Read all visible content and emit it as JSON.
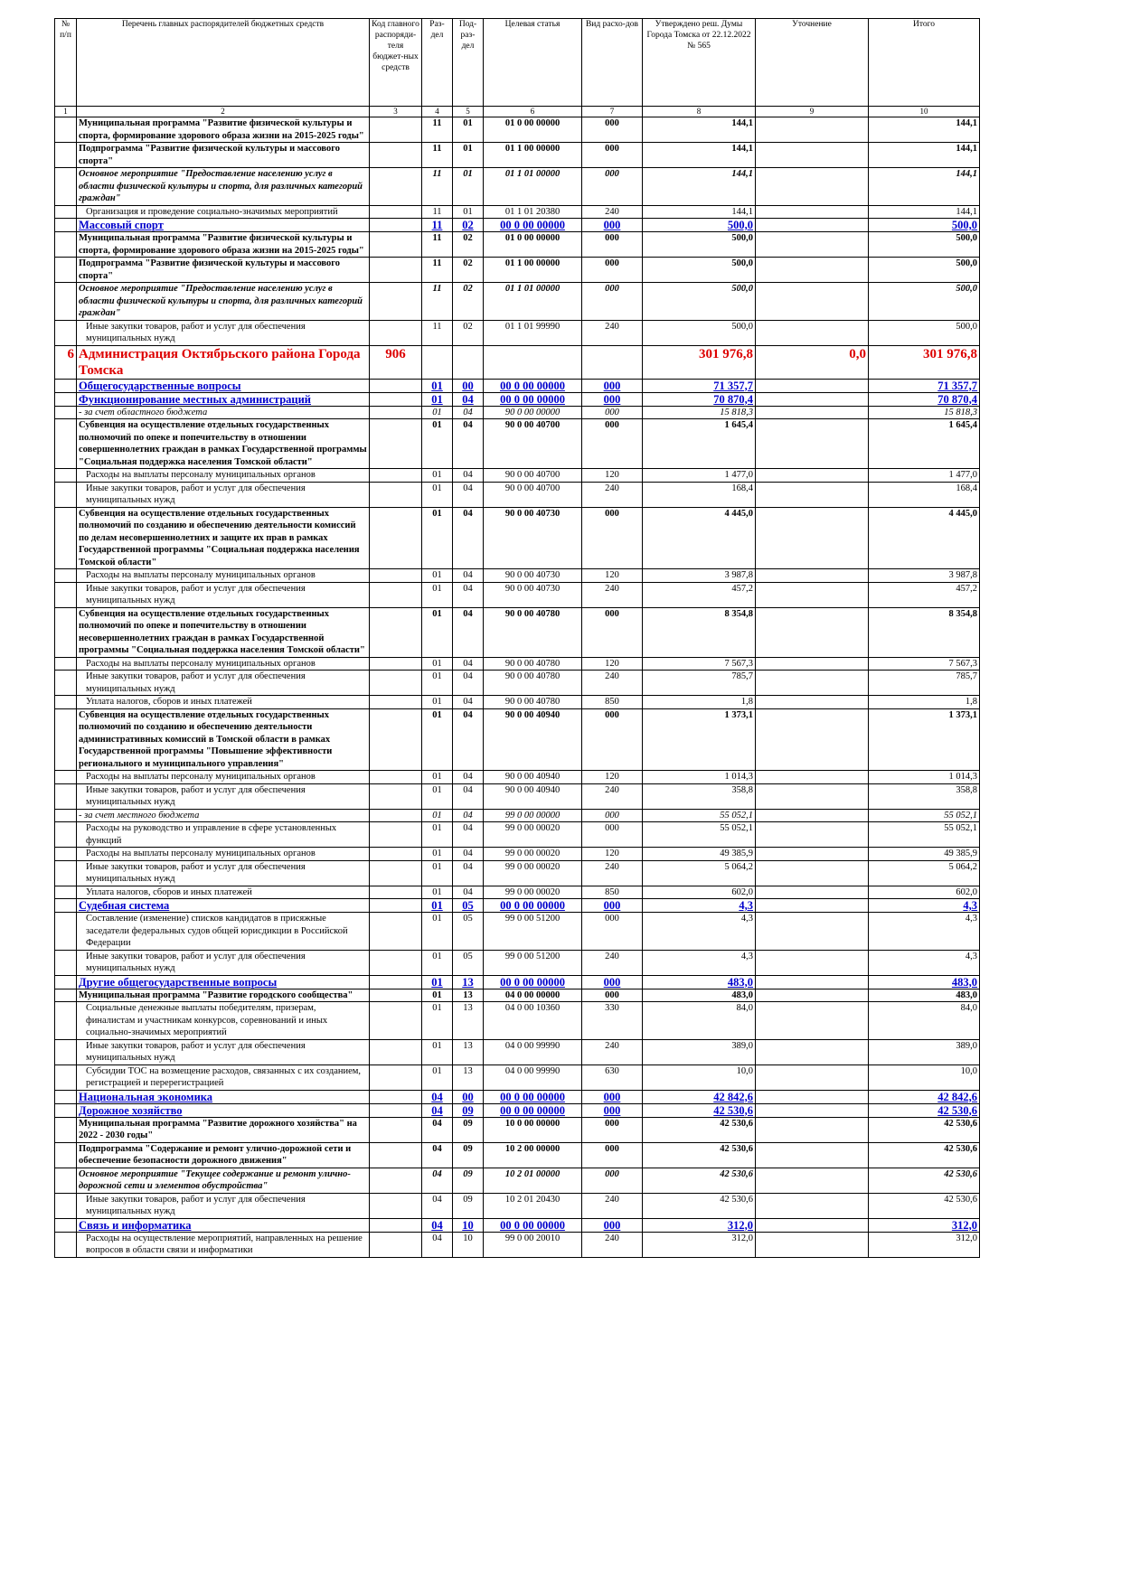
{
  "table": {
    "header": [
      "№ п/п",
      "Перечень главных распорядителей бюджетных средств",
      "Код главного распоряди-теля бюджет-ных средств",
      "Раз-дел",
      "Под-раз-дел",
      "Целевая статья",
      "Вид расхо-дов",
      "Утверждено реш. Думы Города Томска от 22.12.2022 № 565",
      "Уточнение",
      "Итого"
    ],
    "column_numbers": [
      "1",
      "2",
      "3",
      "4",
      "5",
      "6",
      "7",
      "8",
      "9",
      "10"
    ],
    "rows": [
      {
        "style": "b",
        "cells": [
          null,
          "Муниципальная программа \"Развитие физической культуры и спорта, формирование здорового образа жизни на 2015-2025 годы\"",
          null,
          "11",
          "01",
          "01 0 00 00000",
          "000",
          "144,1",
          null,
          "144,1"
        ]
      },
      {
        "style": "b",
        "cells": [
          null,
          "Подпрограмма \"Развитие физической культуры и массового спорта\"",
          null,
          "11",
          "01",
          "01 1 00 00000",
          "000",
          "144,1",
          null,
          "144,1"
        ]
      },
      {
        "style": "bi",
        "cells": [
          null,
          "Основное мероприятие \"Предоставление населению услуг в области физической культуры и спорта, для различных категорий граждан\"",
          null,
          "11",
          "01",
          "01 1 01 00000",
          "000",
          "144,1",
          null,
          "144,1"
        ]
      },
      {
        "style": "n",
        "cells": [
          null,
          "Организация и проведение социально-значимых мероприятий",
          null,
          "11",
          "01",
          "01 1 01 20380",
          "240",
          "144,1",
          null,
          "144,1"
        ]
      },
      {
        "style": "s",
        "cells": [
          null,
          "Массовый спорт",
          null,
          "11",
          "02",
          "00 0 00 00000",
          "000",
          "500,0",
          null,
          "500,0"
        ]
      },
      {
        "style": "b",
        "cells": [
          null,
          "Муниципальная программа \"Развитие физической культуры и спорта, формирование здорового образа жизни на 2015-2025 годы\"",
          null,
          "11",
          "02",
          "01 0 00 00000",
          "000",
          "500,0",
          null,
          "500,0"
        ]
      },
      {
        "style": "b",
        "cells": [
          null,
          "Подпрограмма \"Развитие физической культуры и массового спорта\"",
          null,
          "11",
          "02",
          "01 1 00 00000",
          "000",
          "500,0",
          null,
          "500,0"
        ]
      },
      {
        "style": "bi",
        "cells": [
          null,
          "Основное мероприятие \"Предоставление населению услуг в области физической культуры и спорта, для различных категорий граждан\"",
          null,
          "11",
          "02",
          "01 1 01 00000",
          "000",
          "500,0",
          null,
          "500,0"
        ]
      },
      {
        "style": "n",
        "cells": [
          null,
          "Иные закупки товаров, работ и услуг для обеспечения муниципальных нужд",
          null,
          "11",
          "02",
          "01 1 01 99990",
          "240",
          "500,0",
          null,
          "500,0"
        ]
      },
      {
        "style": "org",
        "cells": [
          "6",
          "Администрация Октябрьского района Города Томска",
          "906",
          null,
          null,
          null,
          null,
          "301 976,8",
          "0,0",
          "301 976,8"
        ]
      },
      {
        "style": "s",
        "cells": [
          null,
          "Общегосударственные вопросы",
          null,
          "01",
          "00",
          "00 0 00 00000",
          "000",
          "71 357,7",
          null,
          "71 357,7"
        ]
      },
      {
        "style": "s",
        "cells": [
          null,
          "Функционирование местных администраций",
          null,
          "01",
          "04",
          "00 0 00 00000",
          "000",
          "70 870,4",
          null,
          "70 870,4"
        ]
      },
      {
        "style": "i",
        "cells": [
          null,
          "- за счет областного бюджета",
          null,
          "01",
          "04",
          "90 0 00 00000",
          "000",
          "15 818,3",
          null,
          "15 818,3"
        ]
      },
      {
        "style": "b",
        "cells": [
          null,
          "Субвенция на осуществление отдельных государственных полномочий по опеке и попечительству в отношении совершеннолетних граждан в рамках Государственной программы \"Социальная поддержка населения Томской области\"",
          null,
          "01",
          "04",
          "90 0 00 40700",
          "000",
          "1 645,4",
          null,
          "1 645,4"
        ]
      },
      {
        "style": "n",
        "cells": [
          null,
          "Расходы на выплаты персоналу муниципальных органов",
          null,
          "01",
          "04",
          "90 0 00 40700",
          "120",
          "1 477,0",
          null,
          "1 477,0"
        ]
      },
      {
        "style": "n",
        "cells": [
          null,
          "Иные закупки товаров, работ и услуг для обеспечения муниципальных нужд",
          null,
          "01",
          "04",
          "90 0 00 40700",
          "240",
          "168,4",
          null,
          "168,4"
        ]
      },
      {
        "style": "b",
        "cells": [
          null,
          "Субвенция на осуществление отдельных государственных полномочий по созданию и обеспечению деятельности комиссий по делам несовершеннолетних и защите их прав в рамках Государственной программы \"Социальная поддержка населения Томской области\"",
          null,
          "01",
          "04",
          "90 0 00 40730",
          "000",
          "4 445,0",
          null,
          "4 445,0"
        ]
      },
      {
        "style": "n",
        "cells": [
          null,
          "Расходы на выплаты персоналу муниципальных органов",
          null,
          "01",
          "04",
          "90 0 00 40730",
          "120",
          "3 987,8",
          null,
          "3 987,8"
        ]
      },
      {
        "style": "n",
        "cells": [
          null,
          "Иные закупки товаров, работ и услуг для обеспечения муниципальных нужд",
          null,
          "01",
          "04",
          "90 0 00 40730",
          "240",
          "457,2",
          null,
          "457,2"
        ]
      },
      {
        "style": "b",
        "cells": [
          null,
          "Субвенция на осуществление отдельных государственных полномочий по опеке и попечительству в отношении несовершеннолетних граждан в рамках Государственной программы \"Социальная поддержка населения Томской области\"",
          null,
          "01",
          "04",
          "90 0 00 40780",
          "000",
          "8 354,8",
          null,
          "8 354,8"
        ]
      },
      {
        "style": "n",
        "cells": [
          null,
          "Расходы на выплаты персоналу муниципальных органов",
          null,
          "01",
          "04",
          "90 0 00 40780",
          "120",
          "7 567,3",
          null,
          "7 567,3"
        ]
      },
      {
        "style": "n",
        "cells": [
          null,
          "Иные закупки товаров, работ и услуг для обеспечения муниципальных нужд",
          null,
          "01",
          "04",
          "90 0 00 40780",
          "240",
          "785,7",
          null,
          "785,7"
        ]
      },
      {
        "style": "n",
        "cells": [
          null,
          "Уплата налогов, сборов и иных платежей",
          null,
          "01",
          "04",
          "90 0 00 40780",
          "850",
          "1,8",
          null,
          "1,8"
        ]
      },
      {
        "style": "b",
        "cells": [
          null,
          "Субвенция на осуществление отдельных государственных полномочий по созданию и обеспечению деятельности административных комиссий в Томской области в рамках Государственной программы \"Повышение эффективности регионального и муниципального управления\"",
          null,
          "01",
          "04",
          "90 0 00 40940",
          "000",
          "1 373,1",
          null,
          "1 373,1"
        ]
      },
      {
        "style": "n",
        "cells": [
          null,
          "Расходы на выплаты персоналу муниципальных органов",
          null,
          "01",
          "04",
          "90 0 00 40940",
          "120",
          "1 014,3",
          null,
          "1 014,3"
        ]
      },
      {
        "style": "n",
        "cells": [
          null,
          "Иные закупки товаров, работ и услуг для обеспечения муниципальных нужд",
          null,
          "01",
          "04",
          "90 0 00 40940",
          "240",
          "358,8",
          null,
          "358,8"
        ]
      },
      {
        "style": "i",
        "cells": [
          null,
          "- за счет местного бюджета",
          null,
          "01",
          "04",
          "99 0 00 00000",
          "000",
          "55 052,1",
          null,
          "55 052,1"
        ]
      },
      {
        "style": "n",
        "cells": [
          null,
          "Расходы на руководство и управление в сфере установленных функций",
          null,
          "01",
          "04",
          "99 0 00 00020",
          "000",
          "55 052,1",
          null,
          "55 052,1"
        ]
      },
      {
        "style": "n",
        "cells": [
          null,
          "Расходы на выплаты персоналу муниципальных органов",
          null,
          "01",
          "04",
          "99 0 00 00020",
          "120",
          "49 385,9",
          null,
          "49 385,9"
        ]
      },
      {
        "style": "n",
        "cells": [
          null,
          "Иные закупки товаров, работ и услуг для обеспечения муниципальных нужд",
          null,
          "01",
          "04",
          "99 0 00 00020",
          "240",
          "5 064,2",
          null,
          "5 064,2"
        ]
      },
      {
        "style": "n",
        "cells": [
          null,
          "Уплата налогов, сборов и иных платежей",
          null,
          "01",
          "04",
          "99 0 00 00020",
          "850",
          "602,0",
          null,
          "602,0"
        ]
      },
      {
        "style": "s",
        "cells": [
          null,
          "Судебная система",
          null,
          "01",
          "05",
          "00 0 00 00000",
          "000",
          "4,3",
          null,
          "4,3"
        ]
      },
      {
        "style": "n",
        "cells": [
          null,
          "Составление (изменение) списков кандидатов в присяжные заседатели федеральных судов общей юрисдикции в Российской Федерации",
          null,
          "01",
          "05",
          "99 0 00 51200",
          "000",
          "4,3",
          null,
          "4,3"
        ]
      },
      {
        "style": "n",
        "cells": [
          null,
          "Иные закупки товаров, работ и услуг для обеспечения муниципальных нужд",
          null,
          "01",
          "05",
          "99 0 00 51200",
          "240",
          "4,3",
          null,
          "4,3"
        ]
      },
      {
        "style": "s",
        "cells": [
          null,
          "Другие общегосударственные вопросы",
          null,
          "01",
          "13",
          "00 0 00 00000",
          "000",
          "483,0",
          null,
          "483,0"
        ]
      },
      {
        "style": "b",
        "cells": [
          null,
          "Муниципальная программа \"Развитие городского сообщества\"",
          null,
          "01",
          "13",
          "04 0 00 00000",
          "000",
          "483,0",
          null,
          "483,0"
        ]
      },
      {
        "style": "n",
        "cells": [
          null,
          "Социальные денежные выплаты победителям, призерам, финалистам и участникам конкурсов, соревнований и иных социально-значимых мероприятий",
          null,
          "01",
          "13",
          "04 0 00 10360",
          "330",
          "84,0",
          null,
          "84,0"
        ]
      },
      {
        "style": "n",
        "cells": [
          null,
          "Иные закупки товаров, работ и услуг для обеспечения муниципальных нужд",
          null,
          "01",
          "13",
          "04 0 00 99990",
          "240",
          "389,0",
          null,
          "389,0"
        ]
      },
      {
        "style": "n",
        "cells": [
          null,
          "Субсидии ТОС на возмещение расходов, связанных с их созданием, регистрацией и перерегистрацией",
          null,
          "01",
          "13",
          "04 0 00 99990",
          "630",
          "10,0",
          null,
          "10,0"
        ]
      },
      {
        "style": "s",
        "cells": [
          null,
          "Национальная экономика",
          null,
          "04",
          "00",
          "00 0 00 00000",
          "000",
          "42 842,6",
          null,
          "42 842,6"
        ]
      },
      {
        "style": "s",
        "cells": [
          null,
          "Дорожное хозяйство",
          null,
          "04",
          "09",
          "00 0 00 00000",
          "000",
          "42 530,6",
          null,
          "42 530,6"
        ]
      },
      {
        "style": "b",
        "cells": [
          null,
          "Муниципальная программа \"Развитие дорожного хозяйства\" на 2022 - 2030 годы\"",
          null,
          "04",
          "09",
          "10 0 00 00000",
          "000",
          "42 530,6",
          null,
          "42 530,6"
        ]
      },
      {
        "style": "b",
        "cells": [
          null,
          "Подпрограмма \"Содержание и ремонт улично-дорожной сети и обеспечение безопасности дорожного движения\"",
          null,
          "04",
          "09",
          "10 2 00 00000",
          "000",
          "42 530,6",
          null,
          "42 530,6"
        ]
      },
      {
        "style": "bi",
        "cells": [
          null,
          "Основное мероприятие \"Текущее содержание и ремонт улично-дорожной сети и элементов обустройства\"",
          null,
          "04",
          "09",
          "10 2 01 00000",
          "000",
          "42 530,6",
          null,
          "42 530,6"
        ]
      },
      {
        "style": "n",
        "cells": [
          null,
          "Иные закупки товаров, работ и услуг для обеспечения муниципальных нужд",
          null,
          "04",
          "09",
          "10 2 01 20430",
          "240",
          "42 530,6",
          null,
          "42 530,6"
        ]
      },
      {
        "style": "s",
        "cells": [
          null,
          "Связь и информатика",
          null,
          "04",
          "10",
          "00 0 00 00000",
          "000",
          "312,0",
          null,
          "312,0"
        ]
      },
      {
        "style": "n",
        "cells": [
          null,
          "Расходы на осуществление мероприятий, направленных на решение вопросов в области связи и информатики",
          null,
          "04",
          "10",
          "99 0 00 20010",
          "240",
          "312,0",
          null,
          "312,0"
        ]
      }
    ]
  }
}
